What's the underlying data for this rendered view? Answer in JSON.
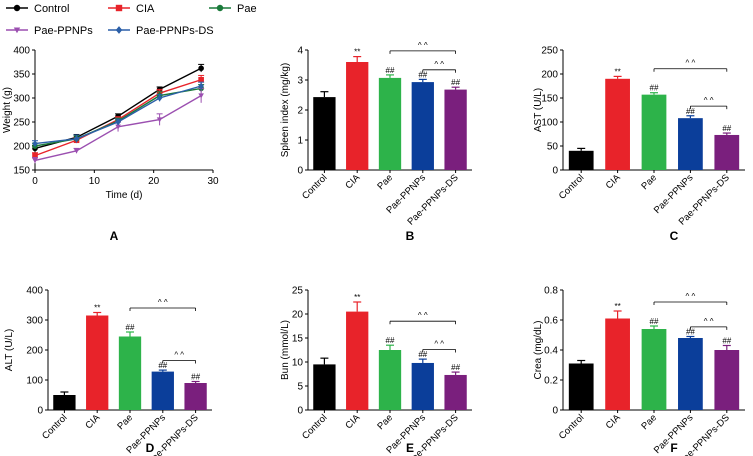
{
  "colors": {
    "Control": "#000000",
    "CIA": "#e8232a",
    "Pae": "#2db34a",
    "Pae-PPNPs": "#0b3e9a",
    "Pae-PPNPs-DS": "#7a1f7d",
    "Pae_line": "#1a7a3a",
    "Pae-PPNPs_line": "#9b4fb0",
    "Pae-PPNPs-DS_line": "#2b5fa8"
  },
  "legend": [
    {
      "label": "Control",
      "color_key": "Control",
      "marker": "circle"
    },
    {
      "label": "CIA",
      "color_key": "CIA",
      "marker": "square"
    },
    {
      "label": "Pae",
      "color_key": "Pae_line",
      "marker": "circle"
    },
    {
      "label": "Pae-PPNPs",
      "color_key": "Pae-PPNPs_line",
      "marker": "triangle"
    },
    {
      "label": "Pae-PPNPs-DS",
      "color_key": "Pae-PPNPs-DS_line",
      "marker": "diamond"
    }
  ],
  "chart_data": [
    {
      "panel": "A",
      "type": "line",
      "xlabel": "Time (d)",
      "ylabel": "Weight (g)",
      "xlim": [
        0,
        30
      ],
      "ylim": [
        150,
        400
      ],
      "xticks": [
        0,
        10,
        20,
        30
      ],
      "yticks": [
        150,
        200,
        250,
        300,
        350,
        400
      ],
      "x": [
        0,
        7,
        14,
        21,
        28
      ],
      "series": [
        {
          "name": "Control",
          "values": [
            195,
            218,
            262,
            318,
            362
          ],
          "err": [
            6,
            6,
            5,
            5,
            8
          ]
        },
        {
          "name": "CIA",
          "values": [
            180,
            212,
            255,
            310,
            338
          ],
          "err": [
            6,
            6,
            6,
            8,
            9
          ]
        },
        {
          "name": "Pae",
          "values": [
            200,
            215,
            252,
            305,
            320
          ],
          "err": [
            6,
            6,
            6,
            8,
            8
          ]
        },
        {
          "name": "Pae-PPNPs",
          "values": [
            170,
            190,
            240,
            255,
            305
          ],
          "err": [
            6,
            5,
            10,
            12,
            15
          ]
        },
        {
          "name": "Pae-PPNPs-DS",
          "values": [
            205,
            215,
            250,
            300,
            325
          ],
          "err": [
            6,
            8,
            6,
            7,
            8
          ]
        }
      ]
    },
    {
      "panel": "B",
      "type": "bar",
      "ylabel": "Spleen index (mg/kg)",
      "categories": [
        "Control",
        "CIA",
        "Pae",
        "Pae-PPNPs",
        "Pae-PPNPs-DS"
      ],
      "values": [
        2.43,
        3.6,
        3.07,
        2.93,
        2.68
      ],
      "err": [
        0.18,
        0.18,
        0.1,
        0.09,
        0.08
      ],
      "ylim": [
        0,
        4
      ],
      "yticks": [
        0,
        1,
        2,
        3,
        4
      ],
      "sig": [
        "",
        "**",
        "##",
        "##",
        "##"
      ],
      "brackets": [
        {
          "from": 2,
          "to": 4,
          "label": "^ ^"
        },
        {
          "from": 3,
          "to": 4,
          "label": "^ ^"
        }
      ]
    },
    {
      "panel": "C",
      "type": "bar",
      "ylabel": "AST (U/L)",
      "categories": [
        "Control",
        "CIA",
        "Pae",
        "Pae-PPNPs",
        "Pae-PPNPs-DS"
      ],
      "values": [
        40,
        190,
        157,
        108,
        73
      ],
      "err": [
        5,
        5,
        4,
        5,
        4
      ],
      "ylim": [
        0,
        250
      ],
      "yticks": [
        0,
        50,
        100,
        150,
        200,
        250
      ],
      "sig": [
        "",
        "**",
        "##",
        "##",
        "##"
      ],
      "brackets": [
        {
          "from": 2,
          "to": 4,
          "label": "^ ^"
        },
        {
          "from": 3,
          "to": 4,
          "label": "^ ^"
        }
      ]
    },
    {
      "panel": "D",
      "type": "bar",
      "ylabel": "ALT (U/L)",
      "categories": [
        "Control",
        "CIA",
        "Pae",
        "Pae-PPNPs",
        "Pae-PPNPs-DS"
      ],
      "values": [
        50,
        315,
        245,
        128,
        90
      ],
      "err": [
        10,
        10,
        15,
        5,
        5
      ],
      "ylim": [
        0,
        400
      ],
      "yticks": [
        0,
        100,
        200,
        300,
        400
      ],
      "sig": [
        "",
        "**",
        "##",
        "##",
        "##"
      ],
      "brackets": [
        {
          "from": 2,
          "to": 4,
          "label": "^ ^"
        },
        {
          "from": 3,
          "to": 4,
          "label": "^ ^"
        }
      ]
    },
    {
      "panel": "E",
      "type": "bar",
      "ylabel": "Bun (mmol/L)",
      "categories": [
        "Control",
        "CIA",
        "Pae",
        "Pae-PPNPs",
        "Pae-PPNPs-DS"
      ],
      "values": [
        9.5,
        20.5,
        12.5,
        9.8,
        7.3
      ],
      "err": [
        1.3,
        2.0,
        1.0,
        0.8,
        0.6
      ],
      "ylim": [
        0,
        25
      ],
      "yticks": [
        0,
        5,
        10,
        15,
        20,
        25
      ],
      "sig": [
        "",
        "**",
        "##",
        "##",
        "##"
      ],
      "brackets": [
        {
          "from": 2,
          "to": 4,
          "label": "^ ^"
        },
        {
          "from": 3,
          "to": 4,
          "label": "^ ^"
        }
      ]
    },
    {
      "panel": "F",
      "type": "bar",
      "ylabel": "Crea (mg/dL)",
      "categories": [
        "Control",
        "CIA",
        "Pae",
        "Pae-PPNPs",
        "Pae-PPNPs-DS"
      ],
      "values": [
        0.31,
        0.61,
        0.54,
        0.48,
        0.4
      ],
      "err": [
        0.02,
        0.05,
        0.02,
        0.01,
        0.03
      ],
      "ylim": [
        0,
        0.8
      ],
      "yticks": [
        0,
        0.2,
        0.4,
        0.6,
        0.8
      ],
      "sig": [
        "",
        "**",
        "##",
        "##",
        "##"
      ],
      "brackets": [
        {
          "from": 2,
          "to": 4,
          "label": "^ ^"
        },
        {
          "from": 3,
          "to": 4,
          "label": "^ ^"
        }
      ]
    }
  ]
}
